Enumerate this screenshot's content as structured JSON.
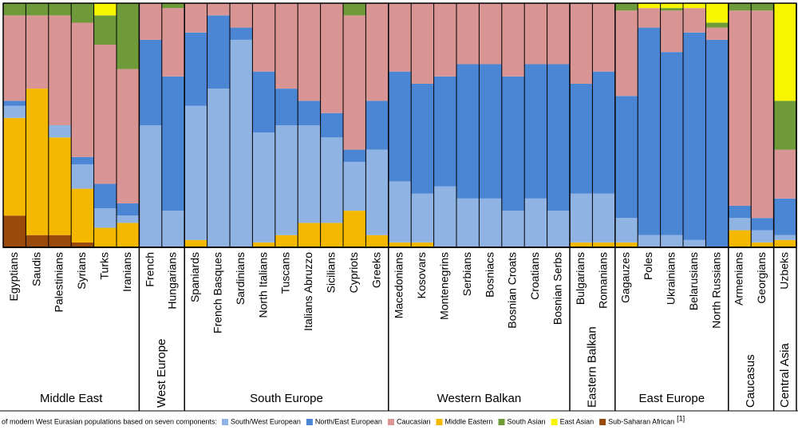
{
  "chart_data": {
    "type": "stacked_bar",
    "groups": [
      {
        "name": "Middle East",
        "categories": [
          "Egyptians",
          "Saudis",
          "Palestinians",
          "Syrians",
          "Turks",
          "Iranians"
        ]
      },
      {
        "name": "West Europe",
        "categories": [
          "French",
          "Hungarians"
        ]
      },
      {
        "name": "South Europe",
        "categories": [
          "Spaniards",
          "French Basques",
          "Sardinians",
          "North Italians",
          "Tuscans",
          "Italians Abruzzo",
          "Sicilians",
          "Cypriots",
          "Greeks"
        ]
      },
      {
        "name": "Western Balkan",
        "categories": [
          "Macedonians",
          "Kosovars",
          "Montenegrins",
          "Serbians",
          "Bosniacs",
          "Bosnian Croats",
          "Croatians",
          "Bosnian Serbs"
        ]
      },
      {
        "name": "Eastern Balkan",
        "categories": [
          "Bulgarians",
          "Romanians"
        ]
      },
      {
        "name": "East Europe",
        "categories": [
          "Gagauzes",
          "Poles",
          "Ukrainians",
          "Belarusians",
          "North Russians"
        ]
      },
      {
        "name": "Caucasus",
        "categories": [
          "Armenians",
          "Georgians"
        ]
      },
      {
        "name": "Central Asia",
        "categories": [
          "Uzbeks"
        ]
      }
    ],
    "ylim": [
      0,
      100
    ],
    "caption": "of modern West Eurasian populations based on seven components:",
    "caption_ref": "[1]",
    "series": [
      {
        "name": "South/West European",
        "color": "#8fb3e3",
        "values": [
          5,
          0,
          5,
          10,
          8,
          3,
          50,
          15,
          55,
          65,
          85,
          45,
          45,
          40,
          35,
          20,
          35,
          25,
          20,
          25,
          20,
          20,
          15,
          20,
          15,
          20,
          20,
          10,
          5,
          5,
          3,
          0,
          5,
          5,
          2
        ]
      },
      {
        "name": "North/East European",
        "color": "#4a86d4",
        "values": [
          2,
          0,
          0,
          3,
          10,
          5,
          35,
          55,
          30,
          30,
          5,
          25,
          15,
          10,
          10,
          5,
          20,
          45,
          45,
          45,
          55,
          55,
          55,
          55,
          60,
          45,
          50,
          50,
          85,
          75,
          85,
          85,
          5,
          5,
          15
        ]
      },
      {
        "name": "Caucasian",
        "color": "#d99494",
        "values": [
          35,
          30,
          45,
          55,
          57,
          55,
          15,
          28,
          12,
          5,
          10,
          28,
          35,
          40,
          45,
          55,
          40,
          28,
          33,
          30,
          25,
          25,
          30,
          25,
          25,
          33,
          28,
          35,
          8,
          17,
          10,
          5,
          80,
          85,
          20
        ]
      },
      {
        "name": "Middle Eastern",
        "color": "#f5b800",
        "values": [
          40,
          60,
          40,
          22,
          8,
          10,
          0,
          0,
          3,
          0,
          0,
          2,
          5,
          10,
          10,
          15,
          5,
          2,
          2,
          0,
          0,
          0,
          0,
          0,
          0,
          2,
          2,
          2,
          0,
          0,
          0,
          0,
          7,
          2,
          3
        ]
      },
      {
        "name": "South Asian",
        "color": "#6f9a3a",
        "values": [
          5,
          5,
          5,
          8,
          12,
          27,
          0,
          2,
          0,
          0,
          0,
          0,
          0,
          0,
          0,
          5,
          0,
          0,
          0,
          0,
          0,
          0,
          0,
          0,
          0,
          0,
          0,
          3,
          0,
          1,
          0,
          2,
          3,
          3,
          20
        ]
      },
      {
        "name": "East Asian",
        "color": "#f8f500",
        "values": [
          0,
          0,
          0,
          0,
          5,
          0,
          0,
          0,
          0,
          0,
          0,
          0,
          0,
          0,
          0,
          0,
          0,
          0,
          0,
          0,
          0,
          0,
          0,
          0,
          0,
          0,
          0,
          0,
          2,
          2,
          2,
          8,
          0,
          0,
          40
        ]
      },
      {
        "name": "Sub-Saharan African",
        "color": "#9a4a0a",
        "values": [
          13,
          5,
          5,
          2,
          0,
          0,
          0,
          0,
          0,
          0,
          0,
          0,
          0,
          0,
          0,
          0,
          0,
          0,
          0,
          0,
          0,
          0,
          0,
          0,
          0,
          0,
          0,
          0,
          0,
          0,
          0,
          0,
          0,
          0,
          0
        ]
      }
    ]
  }
}
